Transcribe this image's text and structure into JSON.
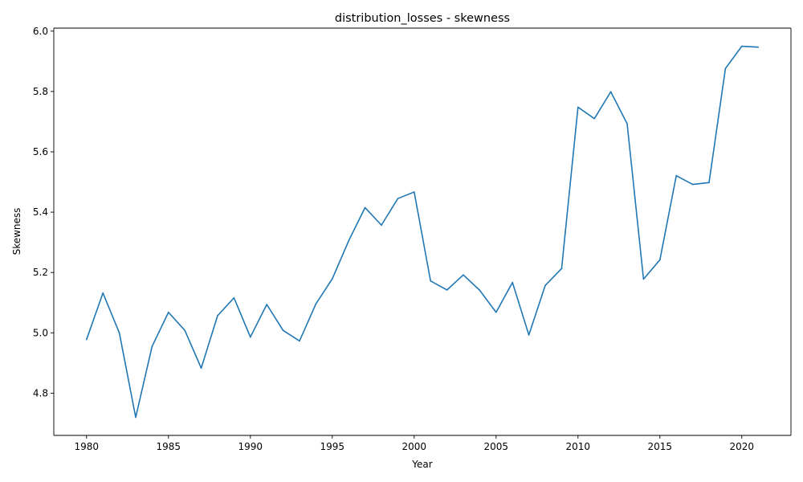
{
  "chart_data": {
    "type": "line",
    "title": "distribution_losses - skewness",
    "xlabel": "Year",
    "ylabel": "Skewness",
    "xlim": [
      1978,
      2023
    ],
    "ylim": [
      4.66,
      6.01
    ],
    "xticks": [
      1980,
      1985,
      1990,
      1995,
      2000,
      2005,
      2010,
      2015,
      2020
    ],
    "yticks": [
      4.8,
      5.0,
      5.2,
      5.4,
      5.6,
      5.8,
      6.0
    ],
    "ytick_labels": [
      "4.8",
      "5.0",
      "5.2",
      "5.4",
      "5.6",
      "5.8",
      "6.0"
    ],
    "grid": false,
    "legend": "none",
    "series": [
      {
        "color": "#1f77b4",
        "x": [
          1980,
          1981,
          1982,
          1983,
          1984,
          1985,
          1986,
          1987,
          1988,
          1989,
          1990,
          1991,
          1992,
          1993,
          1994,
          1995,
          1996,
          1997,
          1998,
          1999,
          2000,
          2001,
          2002,
          2003,
          2004,
          2005,
          2006,
          2007,
          2008,
          2009,
          2010,
          2011,
          2012,
          2013,
          2014,
          2015,
          2016,
          2017,
          2018,
          2019,
          2020,
          2021
        ],
        "values": [
          4.978,
          5.132,
          5.0,
          4.72,
          4.955,
          5.068,
          5.008,
          4.883,
          5.057,
          5.116,
          4.986,
          5.094,
          5.008,
          4.973,
          5.096,
          5.179,
          5.305,
          5.415,
          5.357,
          5.445,
          5.467,
          5.172,
          5.142,
          5.192,
          5.141,
          5.068,
          5.167,
          4.993,
          5.157,
          5.213,
          5.748,
          5.71,
          5.799,
          5.693,
          5.178,
          5.242,
          5.521,
          5.492,
          5.498,
          5.876,
          5.95,
          5.947
        ]
      }
    ]
  }
}
